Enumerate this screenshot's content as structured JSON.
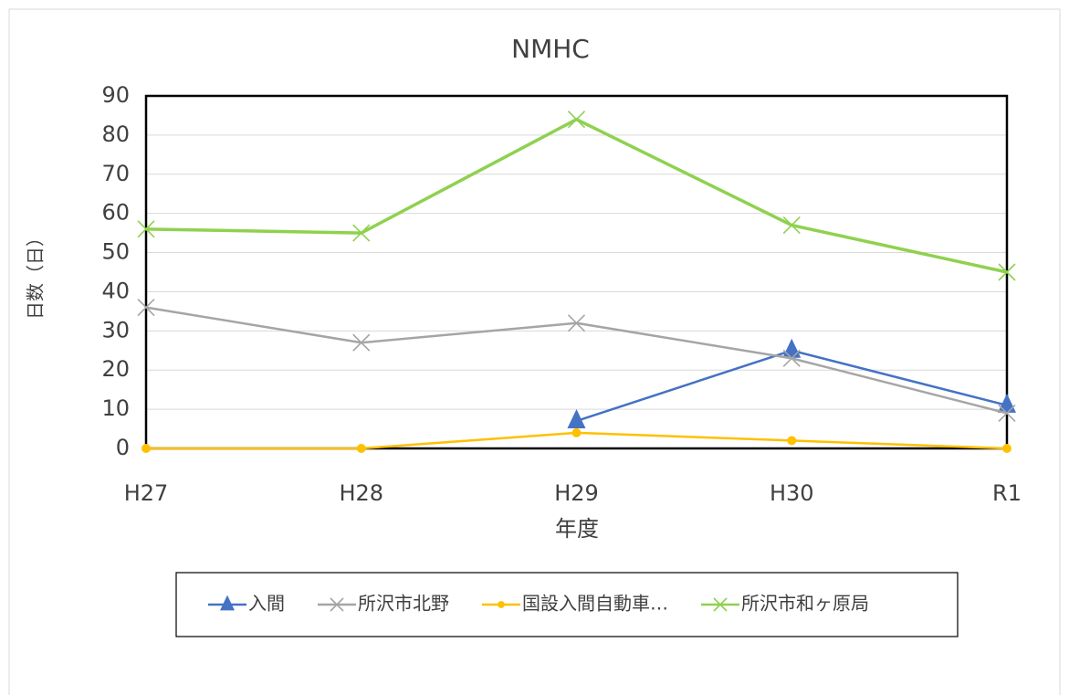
{
  "chart_data": {
    "type": "line",
    "title": "NMHC",
    "x_label": "年度",
    "y_label": "日数（日）",
    "categories": [
      "H27",
      "H28",
      "H29",
      "H30",
      "R1"
    ],
    "series": [
      {
        "name": "入間",
        "color": "#4472c4",
        "marker": "triangle",
        "values": [
          null,
          null,
          7,
          25,
          11
        ]
      },
      {
        "name": "所沢市北野",
        "color": "#a5a5a5",
        "marker": "x",
        "values": [
          36,
          27,
          32,
          23,
          9
        ]
      },
      {
        "name": "国設入間自動車…",
        "color": "#ffc000",
        "marker": "circle",
        "values": [
          0,
          0,
          4,
          2,
          0
        ]
      },
      {
        "name": "所沢市和ヶ原局",
        "color": "#8fd14f",
        "marker": "x",
        "values": [
          56,
          55,
          84,
          57,
          45
        ]
      }
    ],
    "ylim": [
      0,
      90
    ],
    "yticks": [
      0,
      10,
      20,
      30,
      40,
      50,
      60,
      70,
      80,
      90
    ],
    "grid": true,
    "legend": "bottom"
  }
}
